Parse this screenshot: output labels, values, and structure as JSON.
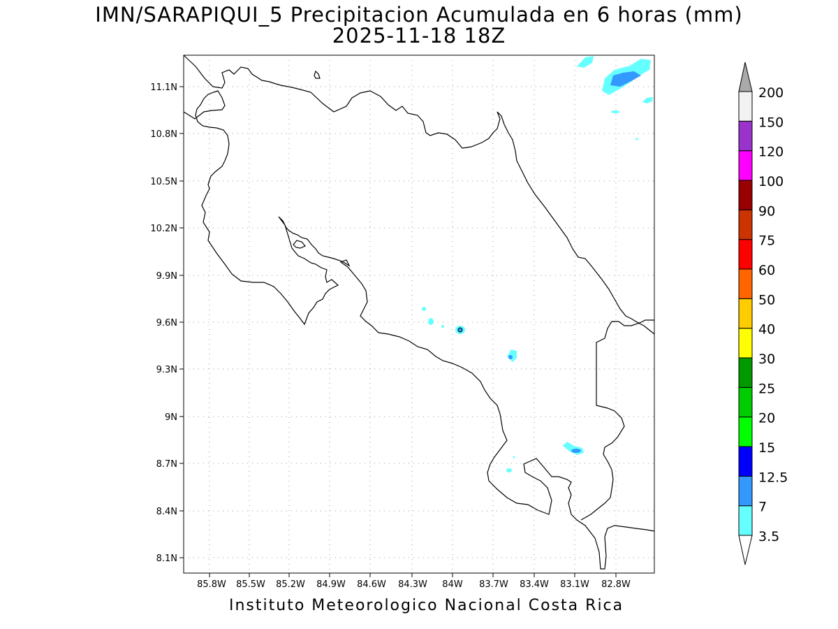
{
  "title": {
    "line1": "IMN/SARAPIQUI_5 Precipitacion Acumulada en 6 horas (mm)",
    "line2": "2025-11-18 18Z"
  },
  "footer": "Instituto Meteorologico Nacional Costa Rica",
  "axes": {
    "lat_ticks": [
      "11.1N",
      "10.8N",
      "10.5N",
      "10.2N",
      "9.9N",
      "9.6N",
      "9.3N",
      "9N",
      "8.7N",
      "8.4N",
      "8.1N"
    ],
    "lon_ticks": [
      "85.8W",
      "85.5W",
      "85.2W",
      "84.9W",
      "84.6W",
      "84.3W",
      "84W",
      "83.7W",
      "83.4W",
      "83.1W",
      "82.8W"
    ]
  },
  "colorbar": {
    "levels": [
      "3.5",
      "7",
      "12.5",
      "15",
      "20",
      "25",
      "30",
      "40",
      "50",
      "60",
      "75",
      "90",
      "100",
      "120",
      "150",
      "200"
    ],
    "colors": [
      "#66ffff",
      "#3399ff",
      "#0000ff",
      "#00ff00",
      "#00cc00",
      "#009900",
      "#ffff00",
      "#ffcc00",
      "#ff6600",
      "#ff0000",
      "#cc3300",
      "#990000",
      "#ff00ff",
      "#9933cc",
      "#f2f2f2",
      "#aaaaaa"
    ]
  }
}
